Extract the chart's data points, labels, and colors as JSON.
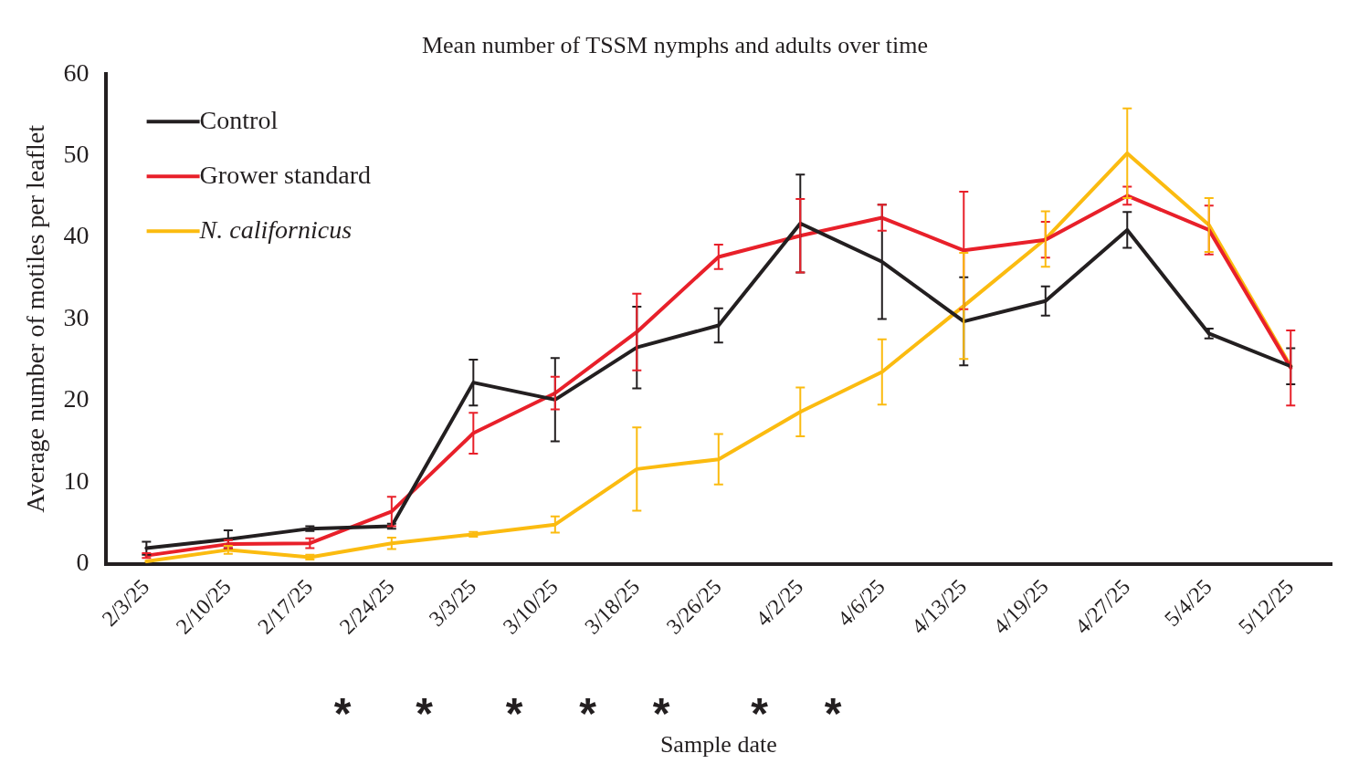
{
  "chart_data": {
    "type": "line",
    "title": "Mean number of TSSM nymphs and adults over time",
    "xlabel": "Sample date",
    "ylabel": "Average number of motiles per leaflet",
    "categories": [
      "2/3/25",
      "2/10/25",
      "2/17/25",
      "2/24/25",
      "3/3/25",
      "3/10/25",
      "3/18/25",
      "3/26/25",
      "4/2/25",
      "4/6/25",
      "4/13/25",
      "4/19/25",
      "4/27/25",
      "5/4/25",
      "5/12/25"
    ],
    "series": [
      {
        "name": "Control",
        "color": "#231f20",
        "values": [
          1.9,
          3.0,
          4.3,
          4.6,
          22.2,
          20.1,
          26.5,
          29.2,
          41.7,
          37.0,
          29.7,
          32.2,
          40.9,
          28.2,
          24.2
        ],
        "errors": [
          0.8,
          1.1,
          0.3,
          0.3,
          2.8,
          5.1,
          5.0,
          2.1,
          6.0,
          7.0,
          5.4,
          1.8,
          2.2,
          0.6,
          2.2
        ]
      },
      {
        "name": "Grower standard",
        "color": "#e8202a",
        "values": [
          1.0,
          2.4,
          2.5,
          6.4,
          16.0,
          20.9,
          28.4,
          37.6,
          40.2,
          42.4,
          38.4,
          39.7,
          45.1,
          40.9,
          24.0
        ],
        "errors": [
          0.3,
          0.5,
          0.6,
          1.8,
          2.5,
          2.0,
          4.7,
          1.5,
          4.5,
          1.6,
          7.2,
          2.2,
          1.1,
          3.0,
          4.6
        ]
      },
      {
        "name": "N. californicus",
        "color": "#fbbb10",
        "values": [
          0.3,
          1.7,
          0.8,
          2.5,
          3.6,
          4.8,
          11.6,
          12.8,
          18.6,
          23.5,
          31.6,
          39.8,
          50.3,
          41.5,
          24.2
        ],
        "errors": [
          null,
          0.5,
          0.3,
          0.7,
          0.3,
          1.0,
          5.1,
          3.1,
          3.0,
          4.0,
          6.5,
          3.4,
          5.5,
          3.3,
          null
        ]
      }
    ],
    "ylim": [
      0,
      60
    ],
    "yticks": [
      0,
      10,
      20,
      30,
      40,
      50,
      60
    ],
    "grid": false,
    "legend": "top left",
    "marker": "none",
    "line_style": "solid",
    "annotations": [
      "*",
      "*",
      "*",
      "*",
      "*",
      "*",
      "*"
    ]
  }
}
